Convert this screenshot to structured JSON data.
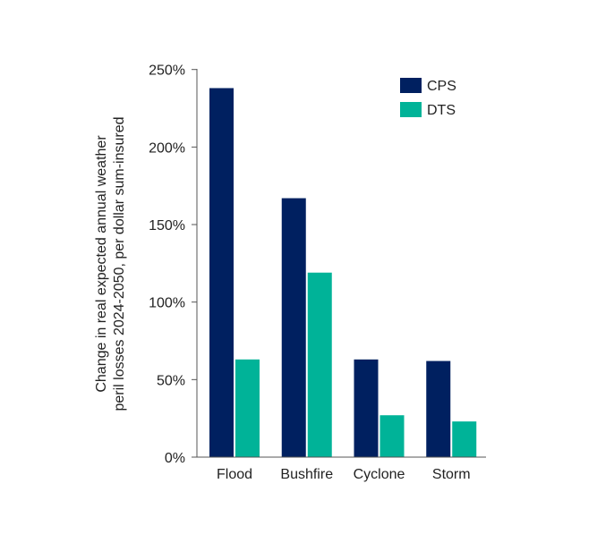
{
  "chart_data": {
    "type": "bar",
    "title": "",
    "xlabel": "",
    "ylabel": [
      "Change in real expected annual weather",
      "peril losses 2024-2050, per dollar sum-insured"
    ],
    "categories": [
      "Flood",
      "Bushfire",
      "Cyclone",
      "Storm"
    ],
    "series": [
      {
        "name": "CPS",
        "color": "#002060",
        "values": [
          238,
          167,
          63,
          62
        ]
      },
      {
        "name": "DTS",
        "color": "#00B398",
        "values": [
          63,
          119,
          27,
          23
        ]
      }
    ],
    "ylim": [
      0,
      250
    ],
    "yticks": [
      0,
      50,
      100,
      150,
      200,
      250
    ],
    "ytick_labels": [
      "0%",
      "50%",
      "100%",
      "150%",
      "200%",
      "250%"
    ],
    "grid": false,
    "legend_position": "top-right"
  }
}
